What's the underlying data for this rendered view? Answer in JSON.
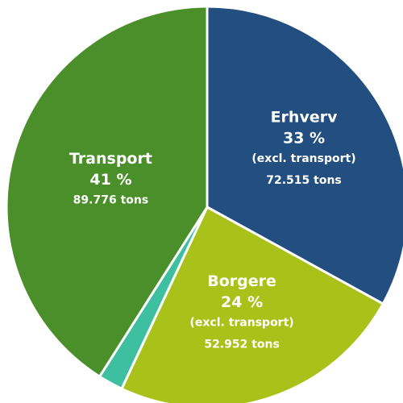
{
  "chart_data": {
    "type": "pie",
    "categories": [
      "Erhverv",
      "Borgere",
      null,
      "Transport"
    ],
    "values": [
      33,
      24,
      2,
      41
    ],
    "value_labels": [
      "33 %",
      "24 %",
      null,
      "41 %"
    ],
    "details": [
      [
        "(excl. transport)",
        "72.515 tons"
      ],
      [
        "(excl. transport)",
        "52.952 tons"
      ],
      [],
      [
        "89.776 tons"
      ]
    ],
    "colors": [
      "#234f80",
      "#a8c21a",
      "#3ebfa0",
      "#4a8f29"
    ]
  }
}
